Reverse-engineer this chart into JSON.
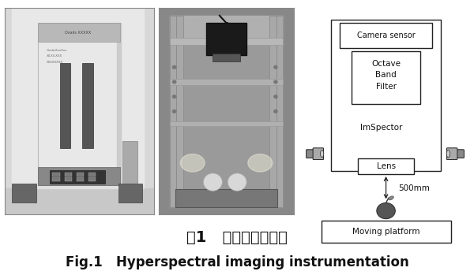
{
  "title_cn": "图1   高光谱成像仪器",
  "title_en": "Fig.1   Hyperspectral imaging instrumentation",
  "title_cn_fontsize": 14,
  "title_en_fontsize": 12,
  "bg_color": "#ffffff",
  "diagram_labels": {
    "camera_sensor": "Camera sensor",
    "octave": "Octave",
    "band": "Band",
    "filter": "Filter",
    "imspector": "ImSpector",
    "lens": "Lens",
    "distance": "500mm",
    "platform": "Moving platform"
  }
}
